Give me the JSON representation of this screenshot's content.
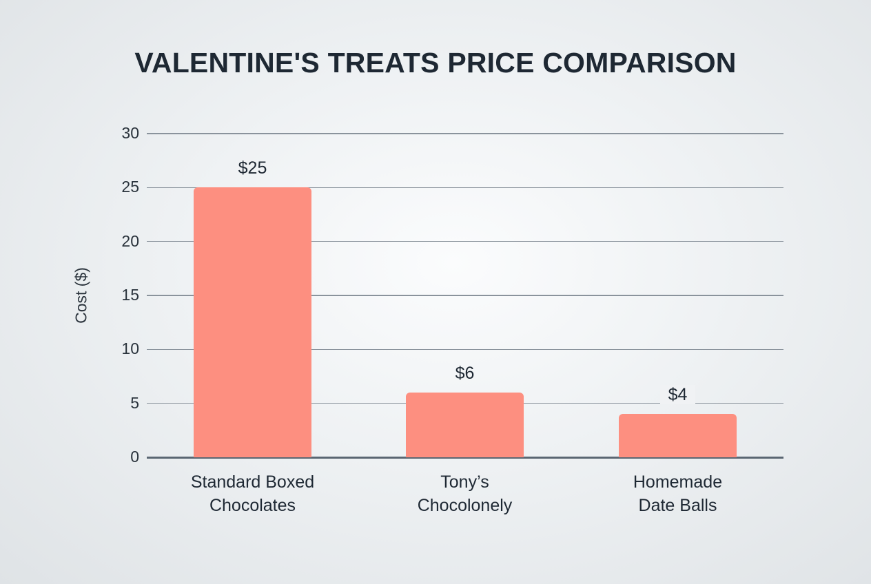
{
  "chart_data": {
    "type": "bar",
    "title": "VALENTINE'S TREATS PRICE COMPARISON",
    "xlabel": "",
    "ylabel": "Cost ($)",
    "ylim": [
      0,
      30
    ],
    "yticks": [
      0,
      5,
      10,
      15,
      20,
      25,
      30
    ],
    "grid": true,
    "legend": null,
    "categories": [
      "Standard Boxed Chocolates",
      "Tony’s Chocolonely",
      "Homemade Date Balls"
    ],
    "category_lines": [
      [
        "Standard Boxed",
        "Chocolates"
      ],
      [
        "Tony’s",
        "Chocolonely"
      ],
      [
        "Homemade",
        "Date Balls"
      ]
    ],
    "values": [
      25,
      6,
      4
    ],
    "value_labels": [
      "$25",
      "$6",
      "$4"
    ],
    "colors": {
      "bar": "#fd8f80",
      "title": "#1e2833",
      "grid": "#8a939c",
      "axis": "#5a6672"
    }
  }
}
